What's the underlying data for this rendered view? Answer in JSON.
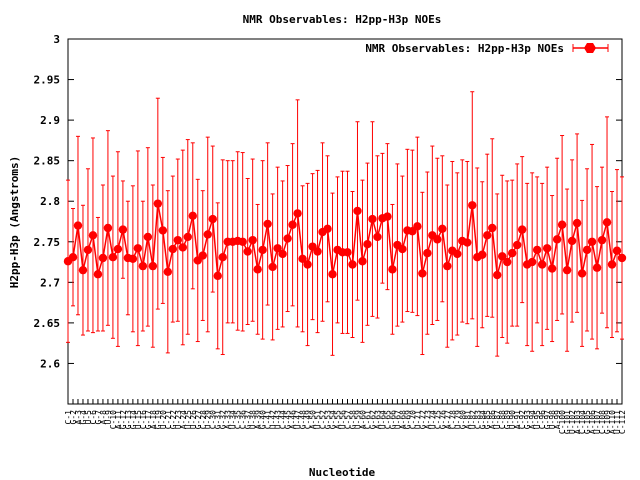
{
  "chart_data": {
    "type": "line",
    "title": "NMR Observables: H2pp-H3p NOEs",
    "xlabel": "Nucleotide",
    "ylabel": "H2pp-H3p (Angstroms)",
    "ylim": [
      2.55,
      3.0
    ],
    "yticks": [
      "2.6",
      "2.65",
      "2.7",
      "2.75",
      "2.8",
      "2.85",
      "2.9",
      "2.95",
      "3"
    ],
    "grid": false,
    "legend_position": "top-right",
    "series": [
      {
        "name": "NMR Observables: H2pp-H3p NOEs",
        "color": "#ff0000",
        "values": [
          2.726,
          2.731,
          2.77,
          2.715,
          2.74,
          2.758,
          2.71,
          2.73,
          2.767,
          2.731,
          2.741,
          2.765,
          2.73,
          2.729,
          2.742,
          2.72,
          2.756,
          2.72,
          2.797,
          2.764,
          2.713,
          2.741,
          2.752,
          2.743,
          2.756,
          2.782,
          2.727,
          2.733,
          2.759,
          2.778,
          2.708,
          2.731,
          2.75,
          2.75,
          2.751,
          2.75,
          2.738,
          2.752,
          2.716,
          2.74,
          2.772,
          2.719,
          2.742,
          2.735,
          2.754,
          2.771,
          2.785,
          2.729,
          2.722,
          2.744,
          2.738,
          2.762,
          2.766,
          2.71,
          2.74,
          2.737,
          2.737,
          2.722,
          2.788,
          2.726,
          2.747,
          2.778,
          2.756,
          2.779,
          2.781,
          2.716,
          2.746,
          2.741,
          2.764,
          2.763,
          2.769,
          2.711,
          2.736,
          2.758,
          2.753,
          2.766,
          2.72,
          2.739,
          2.735,
          2.751,
          2.749,
          2.795,
          2.731,
          2.734,
          2.758,
          2.767,
          2.709,
          2.732,
          2.725,
          2.736,
          2.746,
          2.765,
          2.722,
          2.725,
          2.74,
          2.722,
          2.742,
          2.717,
          2.753,
          2.771,
          2.715,
          2.751,
          2.773,
          2.711,
          2.74,
          2.75,
          2.718,
          2.752,
          2.774,
          2.722,
          2.739,
          2.73
        ],
        "errors": [
          0.1,
          0.06,
          0.11,
          0.08,
          0.1,
          0.12,
          0.07,
          0.09,
          0.12,
          0.1,
          0.12,
          0.06,
          0.07,
          0.09,
          0.12,
          0.08,
          0.11,
          0.1,
          0.13,
          0.09,
          0.1,
          0.09,
          0.1,
          0.12,
          0.12,
          0.09,
          0.1,
          0.08,
          0.12,
          0.09,
          0.09,
          0.12,
          0.1,
          0.1,
          0.11,
          0.11,
          0.09,
          0.1,
          0.08,
          0.11,
          0.1,
          0.09,
          0.1,
          0.09,
          0.09,
          0.1,
          0.14,
          0.09,
          0.1,
          0.09,
          0.1,
          0.11,
          0.09,
          0.1,
          0.09,
          0.1,
          0.1,
          0.09,
          0.11,
          0.1,
          0.1,
          0.12,
          0.1,
          0.08,
          0.09,
          0.08,
          0.1,
          0.09,
          0.1,
          0.1,
          0.11,
          0.1,
          0.1,
          0.11,
          0.1,
          0.09,
          0.1,
          0.11,
          0.1,
          0.1,
          0.1,
          0.14,
          0.11,
          0.09,
          0.1,
          0.11,
          0.1,
          0.1,
          0.1,
          0.09,
          0.1,
          0.09,
          0.1,
          0.11,
          0.09,
          0.1,
          0.1,
          0.09,
          0.1,
          0.11,
          0.1,
          0.1,
          0.11,
          0.09,
          0.1,
          0.12,
          0.1,
          0.09,
          0.13,
          0.09,
          0.1,
          0.1
        ]
      }
    ],
    "xticks": [
      "C-1",
      "G-2",
      "A-3",
      "G-4",
      "U-5",
      "C-6",
      "G-7",
      "A-8",
      "U-9",
      "C-10",
      "A-11",
      "G-12",
      "G-13",
      "G-14",
      "U-15",
      "C-16",
      "G-17",
      "A-18",
      "G-19",
      "U-20",
      "C-21",
      "G-22",
      "U-23",
      "A-24",
      "U-25",
      "U-26",
      "G-27",
      "C-28",
      "U-29",
      "C-30",
      "G-31",
      "G-32",
      "A-33",
      "U-34",
      "C-35",
      "C-36",
      "G-37",
      "U-38",
      "A-39",
      "G-40",
      "C-41",
      "U-42",
      "U-43",
      "C-44",
      "G-45",
      "A-46",
      "U-47",
      "G-48",
      "C-49",
      "A-50",
      "U-51",
      "C-52",
      "G-53",
      "G-54",
      "A-55",
      "U-56",
      "C-57",
      "G-58",
      "U-59",
      "A-60",
      "C-61",
      "G-62",
      "A-63",
      "U-64",
      "C-65",
      "G-66",
      "U-67",
      "A-68",
      "G-69",
      "C-70",
      "U-71",
      "G-72",
      "A-73",
      "U-74",
      "C-75",
      "G-76",
      "A-77",
      "C-78",
      "U-79",
      "G-80",
      "A-81",
      "U-82",
      "C-83",
      "G-84",
      "G-85",
      "A-86",
      "U-87",
      "C-88",
      "G-89",
      "U-90",
      "A-91",
      "C-92",
      "G-93",
      "A-94",
      "U-95",
      "C-96",
      "G-97",
      "U-98",
      "A-99",
      "C-100",
      "G-101",
      "U-102",
      "A-103",
      "C-104",
      "G-105",
      "A-106",
      "U-107",
      "C-108",
      "G-109",
      "A-110",
      "U-111",
      "C-112"
    ]
  }
}
